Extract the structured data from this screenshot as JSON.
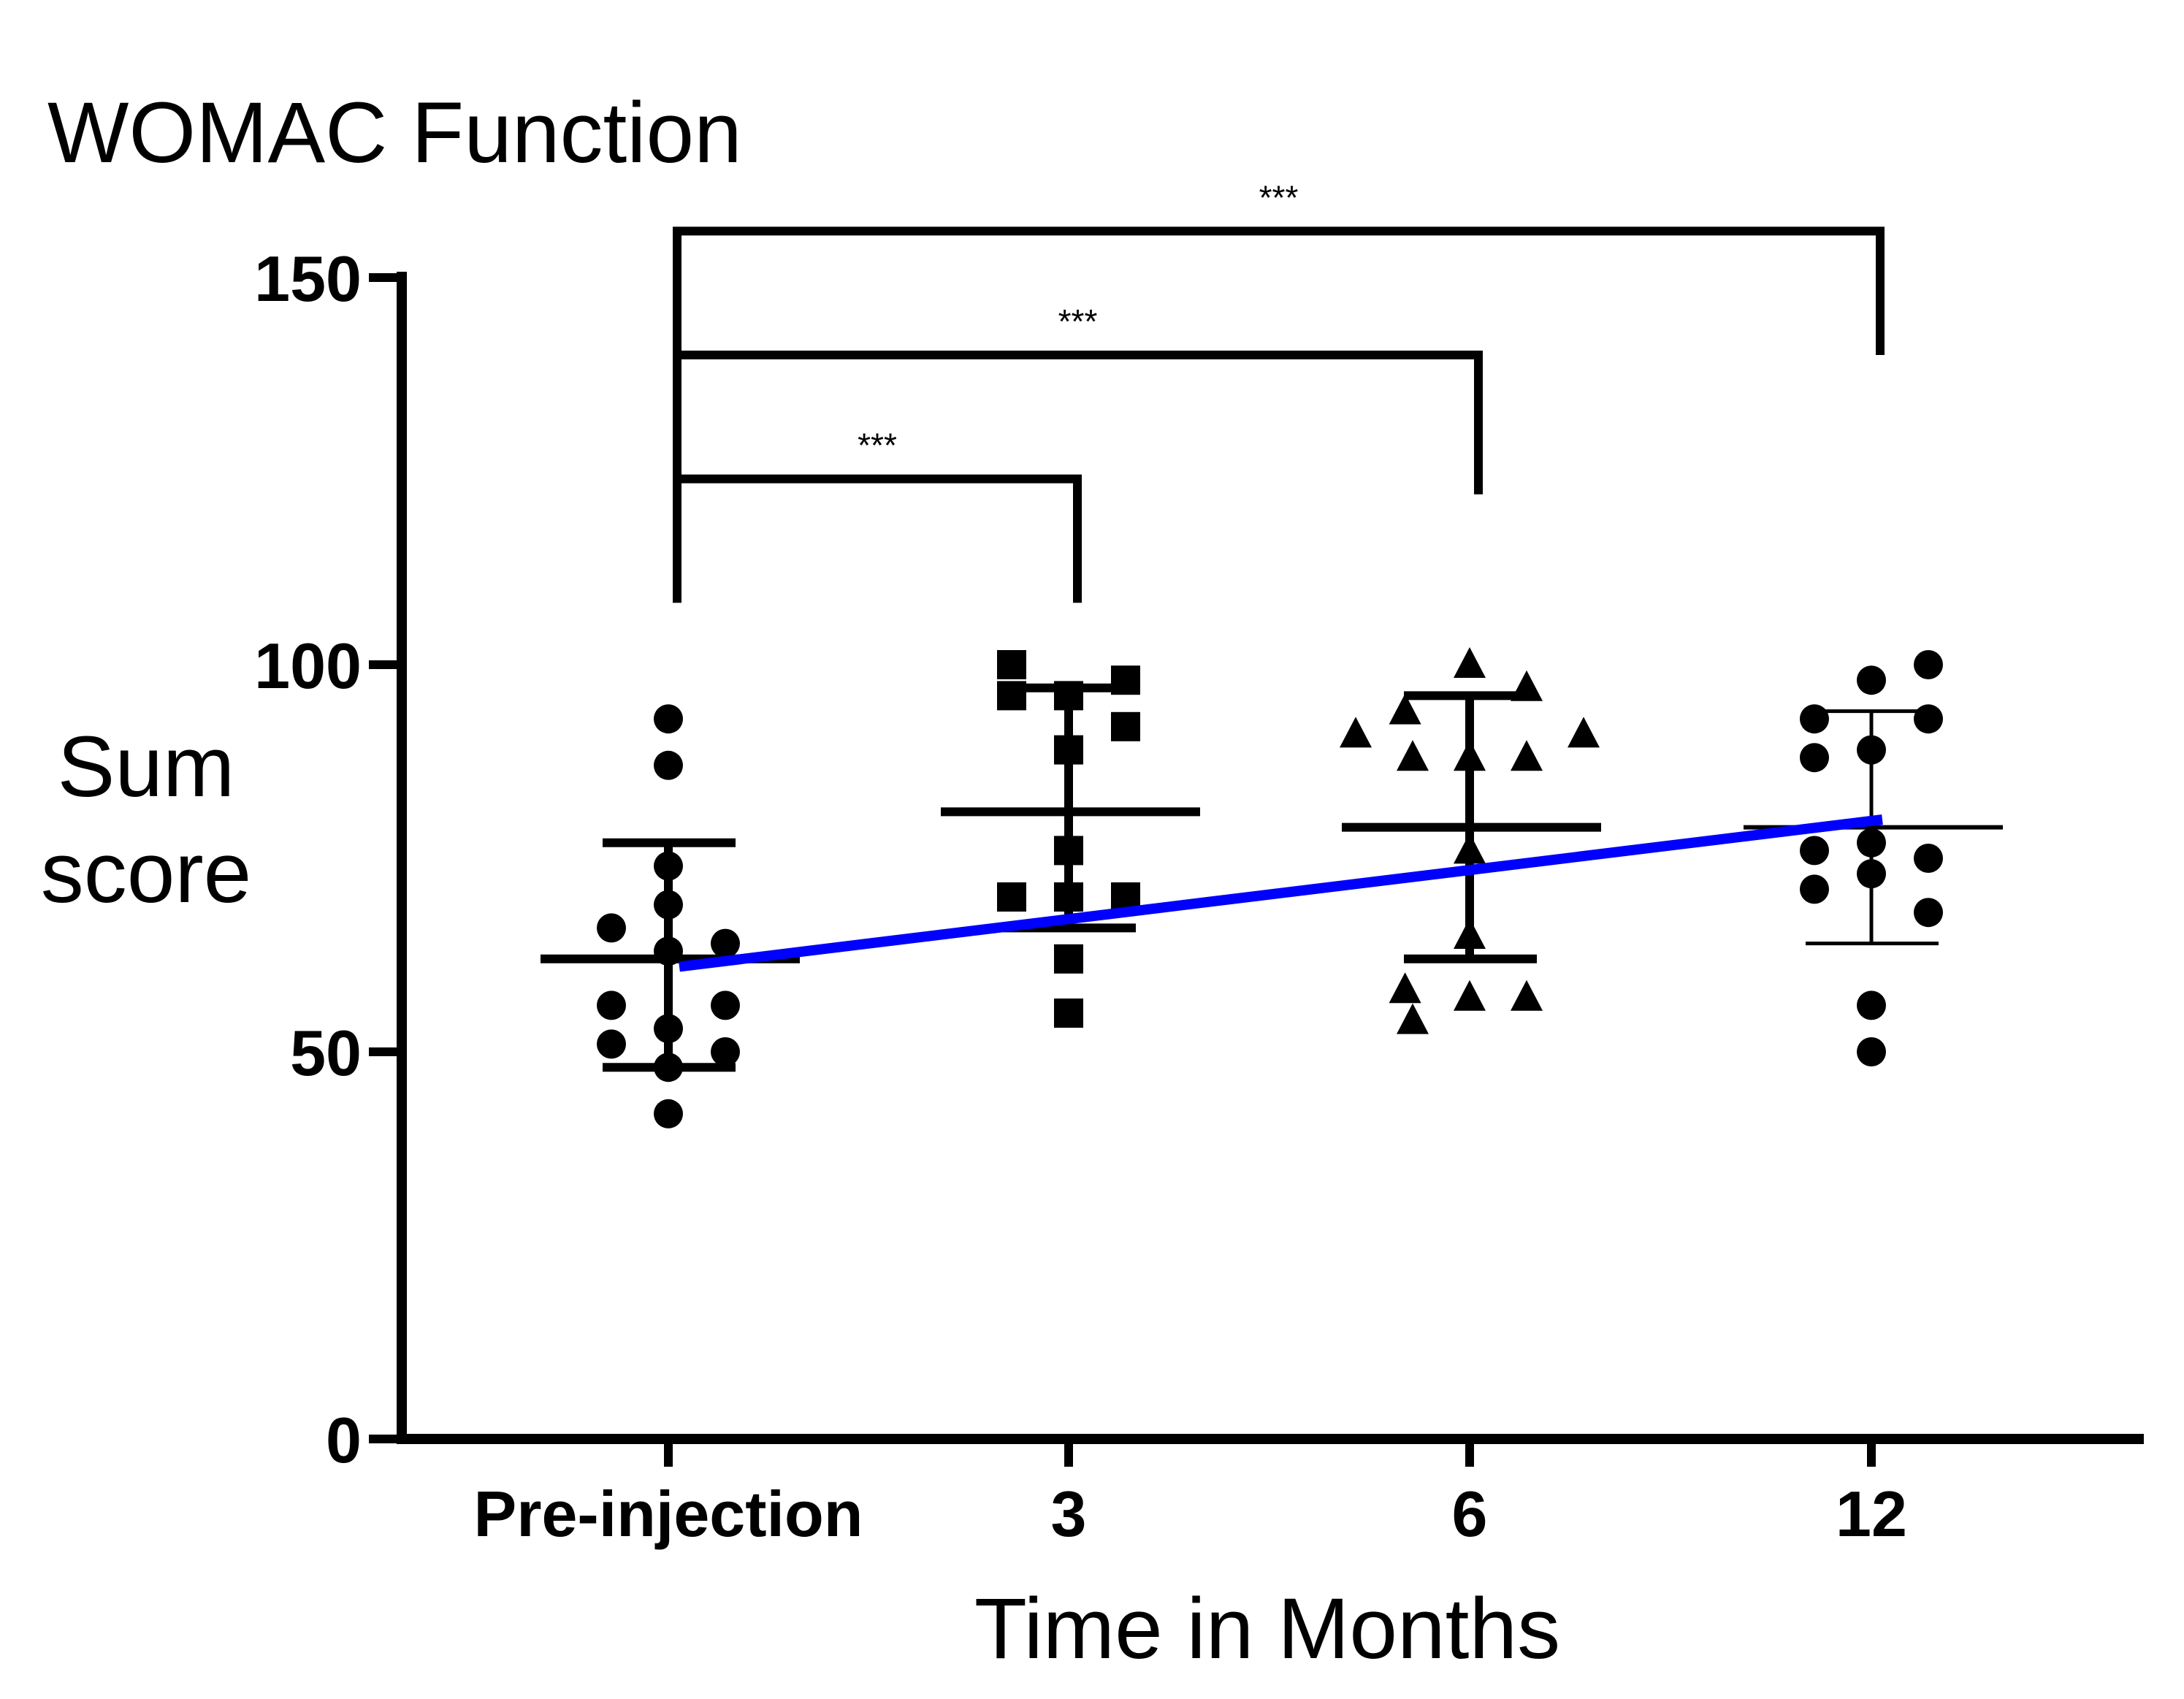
{
  "chart_data": {
    "type": "scatter",
    "title": "WOMAC Function",
    "ylabel_lines": [
      "Sum",
      "score"
    ],
    "xlabel": "Time in Months",
    "ylim": [
      0,
      150
    ],
    "yticks": [
      0,
      50,
      100,
      150
    ],
    "ytick_labels": [
      "0",
      "50",
      "100",
      "150"
    ],
    "categories": [
      "Pre-injection",
      "3",
      "6",
      "12"
    ],
    "series": [
      {
        "name": "Pre-injection",
        "marker": "circle",
        "mean": 62,
        "sd_low": 48,
        "sd_high": 77,
        "points": [
          [
            0,
            93
          ],
          [
            0,
            87
          ],
          [
            0,
            74
          ],
          [
            0,
            69
          ],
          [
            -0.15,
            66
          ],
          [
            0.15,
            64
          ],
          [
            0,
            63
          ],
          [
            -0.15,
            56
          ],
          [
            0.15,
            56
          ],
          [
            0,
            53
          ],
          [
            -0.15,
            51
          ],
          [
            0.15,
            50
          ],
          [
            0,
            48
          ],
          [
            0,
            42
          ]
        ]
      },
      {
        "name": "3",
        "marker": "square",
        "mean": 81,
        "sd_low": 66,
        "sd_high": 97,
        "points": [
          [
            -0.15,
            100
          ],
          [
            0.15,
            98
          ],
          [
            -0.15,
            96
          ],
          [
            0,
            96
          ],
          [
            0.15,
            92
          ],
          [
            0,
            89
          ],
          [
            0,
            76
          ],
          [
            -0.15,
            70
          ],
          [
            0,
            70
          ],
          [
            0.15,
            70
          ],
          [
            0,
            62
          ],
          [
            0,
            55
          ]
        ]
      },
      {
        "name": "6",
        "marker": "triangle",
        "mean": 79,
        "sd_low": 62,
        "sd_high": 96,
        "points": [
          [
            0,
            100
          ],
          [
            0.15,
            97
          ],
          [
            -0.17,
            94
          ],
          [
            -0.3,
            91
          ],
          [
            0.3,
            91
          ],
          [
            -0.15,
            88
          ],
          [
            0,
            88
          ],
          [
            0.15,
            88
          ],
          [
            0,
            76
          ],
          [
            0,
            65
          ],
          [
            -0.17,
            58
          ],
          [
            0,
            57
          ],
          [
            0.15,
            57
          ],
          [
            -0.15,
            54
          ]
        ]
      },
      {
        "name": "12",
        "marker": "circle",
        "mean": 79,
        "sd_low": 64,
        "sd_high": 94,
        "points": [
          [
            0.15,
            100
          ],
          [
            0,
            98
          ],
          [
            -0.15,
            93
          ],
          [
            0.15,
            93
          ],
          [
            -0.15,
            88
          ],
          [
            0,
            89
          ],
          [
            -0.15,
            76
          ],
          [
            0.15,
            75
          ],
          [
            0,
            77
          ],
          [
            0,
            73
          ],
          [
            -0.15,
            71
          ],
          [
            0.15,
            68
          ],
          [
            0,
            56
          ],
          [
            0,
            50
          ]
        ]
      }
    ],
    "trend_line": {
      "color": "#0000ff",
      "from": [
        0,
        61
      ],
      "to": [
        3,
        80
      ]
    },
    "significance_brackets": [
      {
        "from": 0,
        "to": 1,
        "label": "***"
      },
      {
        "from": 0,
        "to": 2,
        "label": "***"
      },
      {
        "from": 0,
        "to": 3,
        "label": "***"
      }
    ]
  }
}
